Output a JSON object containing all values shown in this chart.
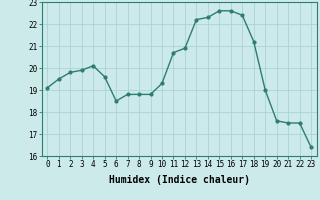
{
  "x": [
    0,
    1,
    2,
    3,
    4,
    5,
    6,
    7,
    8,
    9,
    10,
    11,
    12,
    13,
    14,
    15,
    16,
    17,
    18,
    19,
    20,
    21,
    22,
    23
  ],
  "y": [
    19.1,
    19.5,
    19.8,
    19.9,
    20.1,
    19.6,
    18.5,
    18.8,
    18.8,
    18.8,
    19.3,
    20.7,
    20.9,
    22.2,
    22.3,
    22.6,
    22.6,
    22.4,
    21.2,
    19.0,
    17.6,
    17.5,
    17.5,
    16.4
  ],
  "line_color": "#2e7d6e",
  "marker": "o",
  "marker_size": 2.0,
  "bg_color": "#cceaea",
  "grid_color": "#aad4d4",
  "xlabel": "Humidex (Indice chaleur)",
  "ylim": [
    16,
    23
  ],
  "xlim": [
    -0.5,
    23.5
  ],
  "xticks": [
    0,
    1,
    2,
    3,
    4,
    5,
    6,
    7,
    8,
    9,
    10,
    11,
    12,
    13,
    14,
    15,
    16,
    17,
    18,
    19,
    20,
    21,
    22,
    23
  ],
  "yticks": [
    16,
    17,
    18,
    19,
    20,
    21,
    22,
    23
  ],
  "tick_label_fontsize": 5.5,
  "xlabel_fontsize": 7.0,
  "line_width": 1.0
}
